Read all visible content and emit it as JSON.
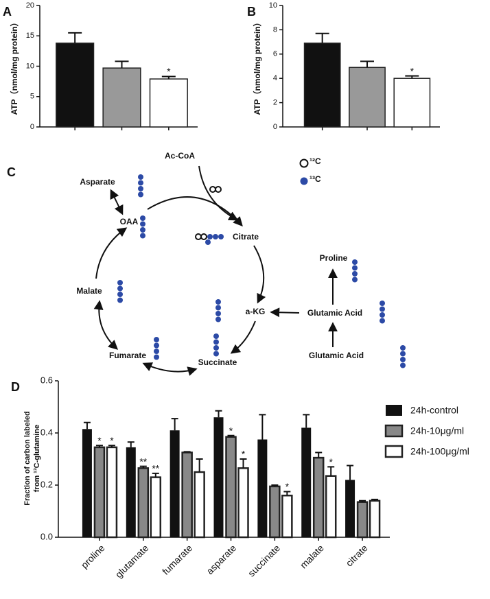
{
  "chart_data": [
    {
      "type": "bar",
      "panel_label": "A",
      "ylabel": "ATP（nmol/mg protein）",
      "categories": [
        null,
        null,
        null
      ],
      "values": [
        13.8,
        9.7,
        7.9
      ],
      "errors": [
        1.7,
        1.1,
        0.4
      ],
      "annotations": [
        null,
        null,
        "*"
      ],
      "colors": [
        "#111111",
        "#999999",
        "#ffffff"
      ],
      "ylim": [
        0,
        20
      ],
      "yticks": [
        0,
        5,
        10,
        15,
        20
      ]
    },
    {
      "type": "bar",
      "panel_label": "B",
      "ylabel": "ATP（nmol/mg protein）",
      "categories": [
        null,
        null,
        null
      ],
      "values": [
        6.9,
        4.9,
        4.0
      ],
      "errors": [
        0.8,
        0.5,
        0.2
      ],
      "annotations": [
        null,
        null,
        "*"
      ],
      "colors": [
        "#111111",
        "#999999",
        "#ffffff"
      ],
      "ylim": [
        0,
        10
      ],
      "yticks": [
        0,
        2,
        4,
        6,
        8,
        10
      ]
    },
    {
      "type": "bar",
      "panel_label": "D",
      "ylabel": [
        "Fraction of carbon  labeled",
        "from ¹³C-glutamine"
      ],
      "categories": [
        "proline",
        "glutamate",
        "fumarate",
        "asparate",
        "succinate",
        "malate",
        "citrate"
      ],
      "series": [
        {
          "name": "24h-control",
          "color": "#111111",
          "values": [
            0.415,
            0.345,
            0.41,
            0.46,
            0.375,
            0.42,
            0.22
          ],
          "errors": [
            0.025,
            0.02,
            0.045,
            0.025,
            0.095,
            0.05,
            0.055
          ],
          "annotations": [
            null,
            null,
            null,
            null,
            null,
            null,
            null
          ]
        },
        {
          "name": "24h-10μg/ml",
          "color": "#888888",
          "values": [
            0.345,
            0.265,
            0.325,
            0.385,
            0.195,
            0.305,
            0.135
          ],
          "errors": [
            0.007,
            0.007,
            0.003,
            0.005,
            0.005,
            0.02,
            0.005
          ],
          "annotations": [
            "*",
            "**",
            null,
            "*",
            null,
            null,
            null
          ]
        },
        {
          "name": "24h-100μg/ml",
          "color": "#ffffff",
          "values": [
            0.345,
            0.23,
            0.25,
            0.265,
            0.16,
            0.235,
            0.14
          ],
          "errors": [
            0.007,
            0.015,
            0.05,
            0.035,
            0.015,
            0.035,
            0.005
          ],
          "annotations": [
            "*",
            "**",
            null,
            "*",
            "*",
            "*",
            null
          ]
        }
      ],
      "ylim": [
        0,
        0.6
      ],
      "yticks": [
        {
          "value": 0,
          "label": "0.0"
        },
        0.2,
        0.4,
        0.6
      ],
      "legend": "upper right"
    }
  ],
  "diagram": {
    "panel_label": "C",
    "nodes": [
      {
        "label": "Ac-CoA"
      },
      {
        "label": "Asparate"
      },
      {
        "label": "OAA"
      },
      {
        "label": "Citrate"
      },
      {
        "label": "a-KG"
      },
      {
        "label": "Malate"
      },
      {
        "label": "Fumarate"
      },
      {
        "label": "Succinate"
      },
      {
        "label": "Proline"
      },
      {
        "label": "Glutamic Acid"
      },
      {
        "label": "Glutamic Acid"
      }
    ],
    "legend": [
      {
        "label": "¹²C"
      },
      {
        "label": "¹³C"
      }
    ]
  }
}
